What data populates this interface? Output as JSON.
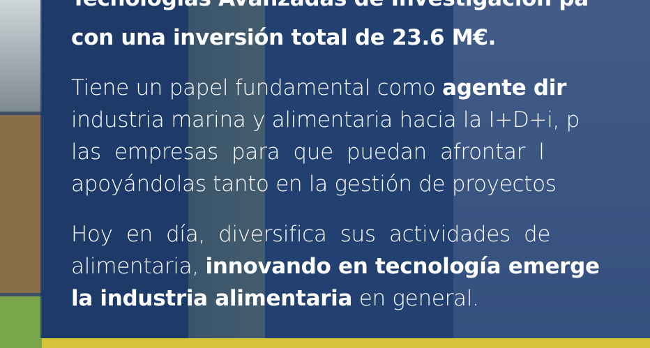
{
  "paragraphs": [
    {
      "lines": [
        [
          {
            "text": "Tecnologías Avanzadas de Investigación pa",
            "bold": true
          }
        ],
        [
          {
            "text": "con una inversión total de 23.6 M€.",
            "bold": true
          }
        ]
      ]
    },
    {
      "lines": [
        [
          {
            "text": "Tiene un papel fundamental como ",
            "bold": false
          },
          {
            "text": "agente dir",
            "bold": true
          }
        ],
        [
          {
            "text": "industria marina y alimentaria hacia la I+D+i, p",
            "bold": false
          }
        ],
        [
          {
            "text": "las  empresas  para  que  puedan  afrontar  l",
            "bold": false
          }
        ],
        [
          {
            "text": "apoyándolas tanto en la gestión de proyectos",
            "bold": false
          }
        ]
      ]
    },
    {
      "lines": [
        [
          {
            "text": "Hoy  en  día,  diversifica  sus  actividades  de",
            "bold": false
          }
        ],
        [
          {
            "text": "alimentaria, ",
            "bold": false
          },
          {
            "text": "innovando en tecnología emerge",
            "bold": true
          }
        ],
        [
          {
            "text": "la industria alimentaria",
            "bold": true
          },
          {
            "text": " en general.",
            "bold": false
          }
        ]
      ]
    }
  ]
}
